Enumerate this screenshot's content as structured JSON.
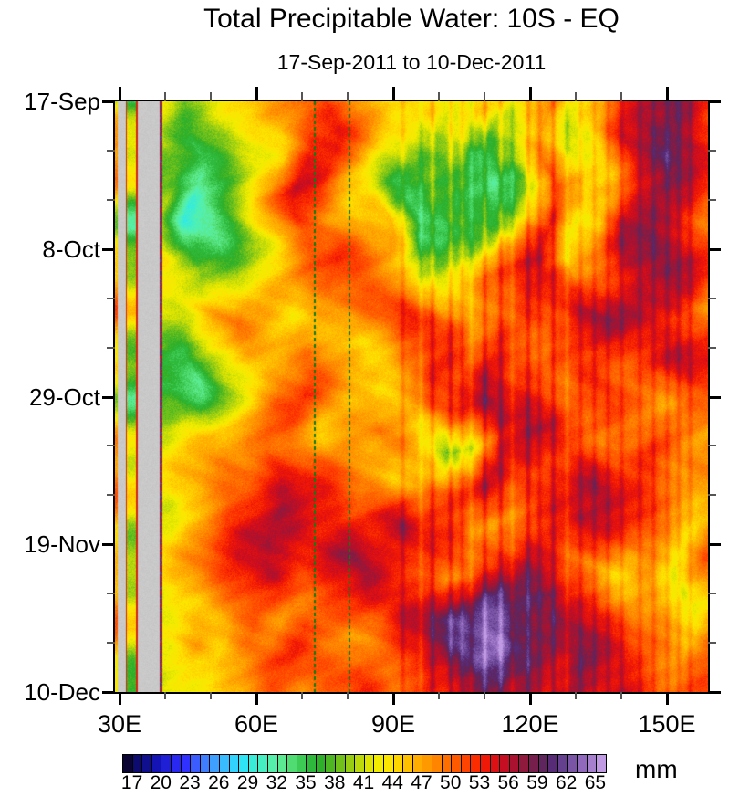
{
  "title": "Total Precipitable Water: 10S - EQ",
  "subtitle": "17-Sep-2011 to 10-Dec-2011",
  "colorbar": {
    "unit": "mm",
    "min": 16,
    "max": 66,
    "step": 1,
    "tick_labels": [
      17,
      20,
      23,
      26,
      29,
      32,
      35,
      38,
      41,
      44,
      47,
      50,
      53,
      56,
      59,
      62,
      65
    ]
  },
  "colors": {
    "land_gray": "#c9c9c9",
    "frame": "#000000",
    "minor_tick": "#555555",
    "lake_border_red": "#d42410",
    "reference_line_green": "#0d7d15"
  },
  "x_axis": {
    "range_lon": [
      29,
      159
    ],
    "major_ticks": [
      30,
      60,
      90,
      120,
      150
    ],
    "minor_ticks": [
      40,
      50,
      70,
      80,
      100,
      110,
      130,
      140
    ],
    "labels": [
      "30E",
      "60E",
      "90E",
      "120E",
      "150E"
    ]
  },
  "y_axis": {
    "range_days": [
      0,
      84
    ],
    "major_tick_days": [
      0,
      21,
      42,
      63,
      84
    ],
    "minor_tick_days": [
      7,
      14,
      28,
      35,
      49,
      56,
      70,
      77
    ],
    "labels": [
      "17-Sep",
      "8-Oct",
      "29-Oct",
      "19-Nov",
      "10-Dec"
    ]
  },
  "chart_data": {
    "type": "heatmap",
    "title": "Total Precipitable Water: 10S - EQ",
    "subtitle": "17-Sep-2011 to 10-Dec-2011",
    "units": "mm",
    "value_range": [
      16,
      66
    ],
    "x_lons_deg_east": [
      40,
      46,
      52,
      58,
      64,
      70,
      76,
      82,
      88,
      94,
      100,
      106,
      112,
      118,
      124,
      130,
      136,
      142,
      148,
      154,
      160
    ],
    "t_dates": [
      "17-Sep",
      "23-Sep",
      "29-Sep",
      "5-Oct",
      "11-Oct",
      "17-Oct",
      "23-Oct",
      "29-Oct",
      "4-Nov",
      "10-Nov",
      "16-Nov",
      "22-Nov",
      "28-Nov",
      "4-Dec",
      "10-Dec"
    ],
    "values_mm": [
      [
        44,
        38,
        41,
        44,
        47,
        50,
        52,
        47,
        44,
        44,
        41,
        44,
        44,
        47,
        50,
        44,
        47,
        54,
        56,
        58,
        53
      ],
      [
        41,
        35,
        38,
        41,
        44,
        53,
        55,
        50,
        44,
        41,
        38,
        38,
        34,
        40,
        47,
        41,
        44,
        56,
        60,
        56,
        50
      ],
      [
        38,
        32,
        35,
        41,
        47,
        55,
        53,
        47,
        41,
        35,
        38,
        35,
        32,
        36,
        50,
        44,
        47,
        54,
        58,
        56,
        53
      ],
      [
        41,
        30,
        32,
        38,
        44,
        50,
        47,
        44,
        47,
        35,
        35,
        38,
        38,
        44,
        52,
        41,
        44,
        56,
        58,
        54,
        50
      ],
      [
        44,
        38,
        41,
        44,
        47,
        50,
        53,
        50,
        47,
        44,
        41,
        44,
        50,
        53,
        56,
        44,
        50,
        54,
        56,
        56,
        53
      ],
      [
        41,
        44,
        47,
        50,
        47,
        44,
        47,
        50,
        50,
        53,
        50,
        47,
        50,
        53,
        53,
        56,
        58,
        56,
        53,
        50,
        47
      ],
      [
        38,
        35,
        41,
        44,
        47,
        50,
        47,
        44,
        47,
        50,
        53,
        50,
        53,
        50,
        50,
        53,
        53,
        50,
        53,
        56,
        53
      ],
      [
        35,
        32,
        38,
        44,
        50,
        53,
        50,
        47,
        44,
        47,
        50,
        53,
        56,
        53,
        50,
        50,
        53,
        50,
        47,
        50,
        53
      ],
      [
        41,
        44,
        47,
        47,
        50,
        47,
        44,
        47,
        50,
        47,
        38,
        44,
        53,
        56,
        53,
        50,
        47,
        50,
        53,
        50,
        47
      ],
      [
        44,
        47,
        50,
        53,
        56,
        53,
        50,
        47,
        44,
        47,
        50,
        53,
        56,
        53,
        50,
        53,
        56,
        53,
        50,
        47,
        50
      ],
      [
        41,
        47,
        53,
        56,
        58,
        56,
        53,
        50,
        53,
        56,
        53,
        50,
        47,
        50,
        53,
        56,
        53,
        50,
        47,
        44,
        47
      ],
      [
        44,
        47,
        50,
        53,
        56,
        53,
        56,
        58,
        53,
        50,
        47,
        50,
        53,
        56,
        53,
        50,
        47,
        44,
        47,
        41,
        50
      ],
      [
        41,
        44,
        47,
        50,
        47,
        50,
        53,
        56,
        53,
        56,
        58,
        60,
        62,
        60,
        58,
        56,
        53,
        50,
        47,
        41,
        44
      ],
      [
        44,
        47,
        44,
        47,
        50,
        53,
        50,
        47,
        50,
        53,
        56,
        62,
        63,
        58,
        56,
        58,
        56,
        53,
        50,
        47,
        50
      ],
      [
        41,
        44,
        44,
        47,
        50,
        47,
        50,
        53,
        50,
        53,
        53,
        56,
        58,
        56,
        53,
        56,
        53,
        56,
        53,
        50,
        53
      ]
    ],
    "lake_column": {
      "lon_span_deg": [
        31.6,
        33.6
      ],
      "values_mm": [
        35,
        44,
        41,
        32,
        41,
        44,
        38,
        34,
        41,
        44,
        41,
        38,
        44,
        41,
        34
      ]
    },
    "land_bands_deg": [
      {
        "name": "africa-west-gray",
        "span": [
          29.6,
          31.4
        ]
      },
      {
        "name": "africa-east-gray",
        "span": [
          34.0,
          38.8
        ]
      }
    ],
    "coast_strip_deg": [
      38.8,
      39.4
    ],
    "edge_strip_deg": [
      29.0,
      29.6
    ],
    "reference_lines": {
      "lons_deg_east": [
        72.6,
        80.2
      ],
      "style": "dotted",
      "color": "#0d7d15"
    },
    "vertical_streaks": [
      {
        "lon": 92.0,
        "d": 2
      },
      {
        "lon": 96.0,
        "d": -2
      },
      {
        "lon": 98.5,
        "d": 3
      },
      {
        "lon": 102.5,
        "d": 3
      },
      {
        "lon": 105.0,
        "d": 2
      },
      {
        "lon": 107.0,
        "d": -2
      },
      {
        "lon": 110.0,
        "d": 3
      },
      {
        "lon": 113.5,
        "d": 3
      },
      {
        "lon": 116.0,
        "d": -2
      },
      {
        "lon": 119.5,
        "d": 3
      },
      {
        "lon": 122.0,
        "d": 2
      },
      {
        "lon": 125.0,
        "d": 3
      },
      {
        "lon": 128.0,
        "d": -2
      },
      {
        "lon": 131.0,
        "d": 2
      },
      {
        "lon": 134.0,
        "d": 2
      },
      {
        "lon": 137.0,
        "d": 2
      },
      {
        "lon": 140.0,
        "d": 2
      },
      {
        "lon": 144.0,
        "d": 2
      },
      {
        "lon": 147.0,
        "d": 2
      },
      {
        "lon": 150.0,
        "d": 2
      },
      {
        "lon": 152.5,
        "d": 2
      },
      {
        "lon": 155.0,
        "d": 2
      }
    ],
    "colormap_stops": [
      [
        16,
        "#0a0433"
      ],
      [
        17,
        "#0d0b70"
      ],
      [
        18,
        "#10108e"
      ],
      [
        19,
        "#1414b4"
      ],
      [
        20,
        "#1f1fd6"
      ],
      [
        21,
        "#2828f0"
      ],
      [
        22,
        "#3030ff"
      ],
      [
        23,
        "#3b5cff"
      ],
      [
        24,
        "#3f7fff"
      ],
      [
        25,
        "#3f9fff"
      ],
      [
        26,
        "#38bcff"
      ],
      [
        27,
        "#32d4ff"
      ],
      [
        28,
        "#2fe4f4"
      ],
      [
        29,
        "#38ecd8"
      ],
      [
        30,
        "#46efc2"
      ],
      [
        31,
        "#55efab"
      ],
      [
        32,
        "#5bea91"
      ],
      [
        33,
        "#50dc72"
      ],
      [
        34,
        "#3ecb55"
      ],
      [
        35,
        "#2eb93c"
      ],
      [
        36,
        "#2fb02b"
      ],
      [
        37,
        "#4cb722"
      ],
      [
        38,
        "#71c11b"
      ],
      [
        39,
        "#97cd13"
      ],
      [
        40,
        "#bcd90b"
      ],
      [
        41,
        "#dde402"
      ],
      [
        42,
        "#f2ec00"
      ],
      [
        43,
        "#fce500"
      ],
      [
        44,
        "#ffd500"
      ],
      [
        45,
        "#ffc100"
      ],
      [
        46,
        "#ffad00"
      ],
      [
        47,
        "#ff9900"
      ],
      [
        48,
        "#ff8400"
      ],
      [
        49,
        "#ff6f00"
      ],
      [
        50,
        "#ff5a00"
      ],
      [
        51,
        "#ff4300"
      ],
      [
        52,
        "#fb2d00"
      ],
      [
        53,
        "#f01806"
      ],
      [
        54,
        "#dd1014"
      ],
      [
        55,
        "#c60e22"
      ],
      [
        56,
        "#ab122f"
      ],
      [
        57,
        "#90193e"
      ],
      [
        58,
        "#761f4c"
      ],
      [
        59,
        "#5f255d"
      ],
      [
        60,
        "#582b76"
      ],
      [
        61,
        "#65408f"
      ],
      [
        62,
        "#7a55a6"
      ],
      [
        63,
        "#9069bc"
      ],
      [
        64,
        "#a77fcf"
      ],
      [
        65,
        "#c09ae2"
      ],
      [
        66,
        "#e2d3f2"
      ]
    ]
  }
}
